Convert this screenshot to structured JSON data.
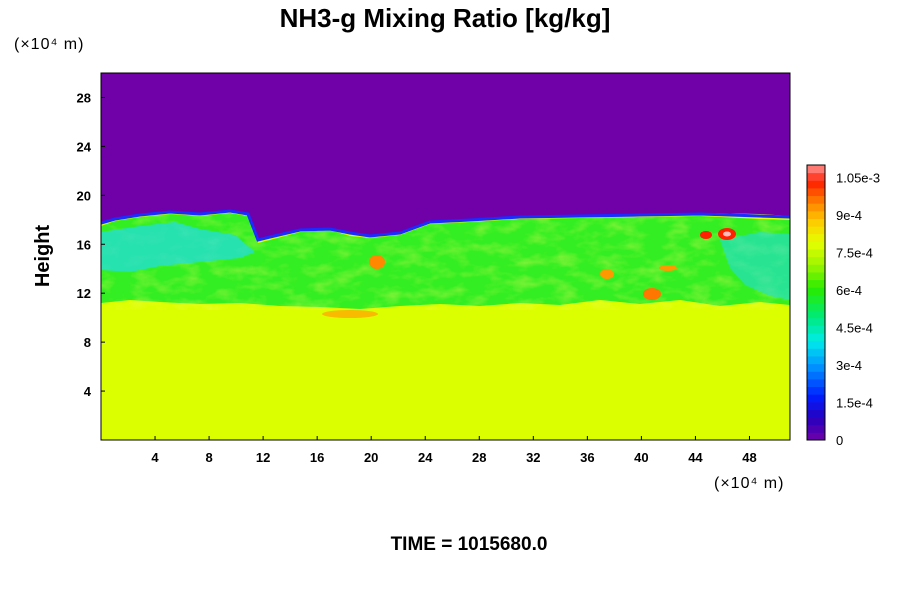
{
  "chart_data": {
    "type": "heatmap",
    "title": "NH3-g Mixing Ratio [kg/kg]",
    "xlabel": "",
    "ylabel": "Height",
    "x_unit": "(×10⁴ m)",
    "y_unit": "(×10⁴ m)",
    "xlim": [
      0,
      51
    ],
    "ylim": [
      0,
      30
    ],
    "x_ticks": [
      4,
      8,
      12,
      16,
      20,
      24,
      28,
      32,
      36,
      40,
      44,
      48
    ],
    "y_ticks": [
      4,
      8,
      12,
      16,
      20,
      24,
      28
    ],
    "colorbar": {
      "min": 0,
      "max": 0.0011,
      "ticks": [
        {
          "value": 0,
          "label": "0"
        },
        {
          "value": 0.00015,
          "label": "1.5e-4"
        },
        {
          "value": 0.0003,
          "label": "3e-4"
        },
        {
          "value": 0.00045,
          "label": "4.5e-4"
        },
        {
          "value": 0.0006,
          "label": "6e-4"
        },
        {
          "value": 0.00075,
          "label": "7.5e-4"
        },
        {
          "value": 0.0009,
          "label": "9e-4"
        },
        {
          "value": 0.00105,
          "label": "1.05e-3"
        }
      ]
    },
    "regions": [
      {
        "name": "upper layer",
        "y_range": [
          17.5,
          30
        ],
        "value": 0.0
      },
      {
        "name": "mixing layer",
        "y_range": [
          11,
          17.5
        ],
        "value": 0.00055
      },
      {
        "name": "lower layer",
        "y_range": [
          0,
          11
        ],
        "value": 0.00078
      }
    ],
    "colors": {
      "upper": "#7000a8",
      "lower": "#dcff00",
      "band": "#33ee22"
    }
  },
  "footer": {
    "time_label": "TIME = 1015680.0"
  }
}
